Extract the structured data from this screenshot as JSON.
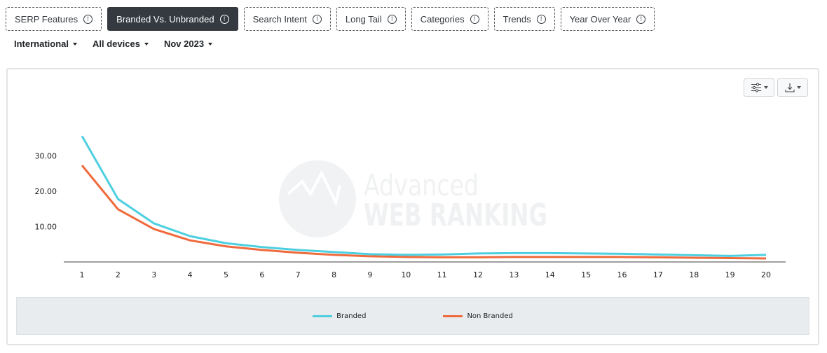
{
  "tabs": [
    {
      "label": "SERP Features",
      "active": false
    },
    {
      "label": "Branded Vs. Unbranded",
      "active": true
    },
    {
      "label": "Search Intent",
      "active": false
    },
    {
      "label": "Long Tail",
      "active": false
    },
    {
      "label": "Categories",
      "active": false
    },
    {
      "label": "Trends",
      "active": false
    },
    {
      "label": "Year Over Year",
      "active": false
    }
  ],
  "info_icon_glyph": "!",
  "filters": {
    "location": "International",
    "device": "All devices",
    "date": "Nov 2023"
  },
  "toolbar": {
    "settings_icon": "sliders-icon",
    "download_icon": "download-icon"
  },
  "watermark": {
    "line1": "Advanced",
    "line2": "WEB RANKING"
  },
  "colors": {
    "branded": "#4ecfe0",
    "non_branded": "#ef6a3c",
    "active_tab": "#343a40",
    "legend_bg": "#e9ecef"
  },
  "chart_data": {
    "type": "line",
    "title": "",
    "xlabel": "",
    "ylabel": "",
    "x": [
      1,
      2,
      3,
      4,
      5,
      6,
      7,
      8,
      9,
      10,
      11,
      12,
      13,
      14,
      15,
      16,
      17,
      18,
      19,
      20
    ],
    "y_ticks": [
      "10.00",
      "20.00",
      "30.00"
    ],
    "ylim": [
      0,
      36
    ],
    "grid": false,
    "legend_position": "bottom",
    "series": [
      {
        "name": "Branded",
        "color": "#4ecfe0",
        "values": [
          35.6,
          17.8,
          10.9,
          7.3,
          5.3,
          4.2,
          3.4,
          2.8,
          2.2,
          2.0,
          2.1,
          2.4,
          2.5,
          2.5,
          2.4,
          2.3,
          2.1,
          1.9,
          1.7,
          2.0
        ]
      },
      {
        "name": "Non Branded",
        "color": "#ef6a3c",
        "values": [
          27.3,
          14.9,
          9.3,
          6.1,
          4.4,
          3.4,
          2.6,
          2.0,
          1.6,
          1.4,
          1.3,
          1.3,
          1.4,
          1.4,
          1.4,
          1.4,
          1.3,
          1.2,
          1.1,
          1.0
        ]
      }
    ]
  }
}
